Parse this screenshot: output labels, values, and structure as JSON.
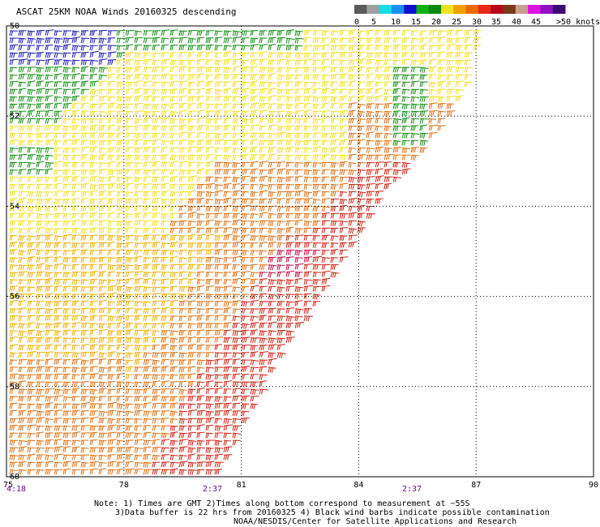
{
  "title": "ASCAT 25KM NOAA Winds 20160325 descending",
  "legend": {
    "labels": [
      "0",
      "5",
      "10",
      "15",
      "20",
      "25",
      "30",
      "35",
      "40",
      "45",
      ">50 knots"
    ],
    "colors": [
      "#5a5a5a",
      "#a0a0a0",
      "#18dce8",
      "#1890f0",
      "#1010d0",
      "#10b010",
      "#0c8a0c",
      "#f0e020",
      "#f0a000",
      "#e86a08",
      "#e82818",
      "#b80818",
      "#7a3a18",
      "#c8a090",
      "#e010e0",
      "#9010c0",
      "#3a0a70"
    ]
  },
  "map": {
    "lon_labels": [
      "75",
      "78",
      "81",
      "84",
      "87",
      "90"
    ],
    "lat_labels": [
      "-50",
      "-52",
      "-54",
      "-56",
      "-58",
      "-60"
    ],
    "lon_min": 75,
    "lon_max": 90,
    "lat_min": -50,
    "lat_max": -60
  },
  "times": {
    "left": "4:18",
    "mid1": "2:37",
    "mid2": "2:37"
  },
  "notes": {
    "line1": "Note: 1) Times are GMT 2)Times along bottom correspond to measurement at ~55S",
    "line2": "3)Data buffer is 22 hrs from 20160325 4) Black wind barbs indicate possible contamination",
    "line3": "NOAA/NESDIS/Center for Satellite Applications and Research"
  },
  "speed_colors": {
    "blue": "#1a1ab8",
    "green": "#109010",
    "yellow": "#f2e020",
    "gold": "#f0b000",
    "orange": "#e07010",
    "red": "#d02010",
    "crimson": "#c00840"
  }
}
